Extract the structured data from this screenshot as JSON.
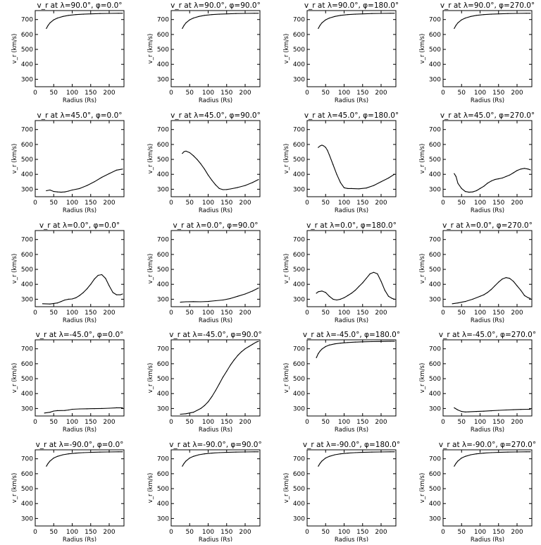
{
  "chart_data": [
    {
      "type": "line",
      "title": "v_r at λ=90.0°, φ=0.0°",
      "xlabel": "Radius (Rs)",
      "ylabel": "v_r (km/s)",
      "xlim": [
        0,
        240
      ],
      "ylim": [
        250,
        760
      ],
      "xticks": [
        0,
        50,
        100,
        150,
        200
      ],
      "yticks": [
        300,
        400,
        500,
        600,
        700
      ],
      "x": [
        30,
        35,
        40,
        50,
        60,
        75,
        90,
        110,
        130,
        150,
        175,
        200,
        225,
        236
      ],
      "values": [
        640,
        662,
        678,
        698,
        710,
        721,
        728,
        733,
        736,
        738,
        740,
        741,
        742,
        742
      ]
    },
    {
      "type": "line",
      "title": "v_r at λ=90.0°, φ=90.0°",
      "xlabel": "Radius (Rs)",
      "ylabel": "v_r (km/s)",
      "xlim": [
        0,
        240
      ],
      "ylim": [
        250,
        760
      ],
      "xticks": [
        0,
        50,
        100,
        150,
        200
      ],
      "yticks": [
        300,
        400,
        500,
        600,
        700
      ],
      "x": [
        30,
        35,
        40,
        50,
        60,
        75,
        90,
        110,
        130,
        150,
        175,
        200,
        225,
        236
      ],
      "values": [
        640,
        662,
        678,
        698,
        710,
        721,
        728,
        733,
        736,
        738,
        740,
        741,
        742,
        742
      ]
    },
    {
      "type": "line",
      "title": "v_r at λ=90.0°, φ=180.0°",
      "xlabel": "Radius (Rs)",
      "ylabel": "v_r (km/s)",
      "xlim": [
        0,
        240
      ],
      "ylim": [
        250,
        760
      ],
      "xticks": [
        0,
        50,
        100,
        150,
        200
      ],
      "yticks": [
        300,
        400,
        500,
        600,
        700
      ],
      "x": [
        30,
        35,
        40,
        50,
        60,
        75,
        90,
        110,
        130,
        150,
        175,
        200,
        225,
        236
      ],
      "values": [
        640,
        662,
        678,
        698,
        710,
        721,
        728,
        733,
        736,
        738,
        740,
        741,
        742,
        742
      ]
    },
    {
      "type": "line",
      "title": "v_r at λ=90.0°, φ=270.0°",
      "xlabel": "Radius (Rs)",
      "ylabel": "v_r (km/s)",
      "xlim": [
        0,
        240
      ],
      "ylim": [
        250,
        760
      ],
      "xticks": [
        0,
        50,
        100,
        150,
        200
      ],
      "yticks": [
        300,
        400,
        500,
        600,
        700
      ],
      "x": [
        30,
        35,
        40,
        50,
        60,
        75,
        90,
        110,
        130,
        150,
        175,
        200,
        225,
        236
      ],
      "values": [
        640,
        662,
        678,
        698,
        710,
        721,
        728,
        733,
        736,
        738,
        740,
        741,
        742,
        742
      ]
    },
    {
      "type": "line",
      "title": "v_r at λ=45.0°, φ=0.0°",
      "xlabel": "Radius (Rs)",
      "ylabel": "v_r (km/s)",
      "xlim": [
        0,
        240
      ],
      "ylim": [
        250,
        760
      ],
      "xticks": [
        0,
        50,
        100,
        150,
        200
      ],
      "yticks": [
        300,
        400,
        500,
        600,
        700
      ],
      "x": [
        30,
        40,
        50,
        60,
        70,
        80,
        90,
        100,
        120,
        140,
        160,
        180,
        200,
        220,
        236
      ],
      "values": [
        290,
        295,
        285,
        282,
        280,
        282,
        288,
        295,
        305,
        325,
        350,
        380,
        405,
        428,
        435
      ]
    },
    {
      "type": "line",
      "title": "v_r at λ=45.0°, φ=90.0°",
      "xlabel": "Radius (Rs)",
      "ylabel": "v_r (km/s)",
      "xlim": [
        0,
        240
      ],
      "ylim": [
        250,
        760
      ],
      "xticks": [
        0,
        50,
        100,
        150,
        200
      ],
      "yticks": [
        300,
        400,
        500,
        600,
        700
      ],
      "x": [
        30,
        35,
        40,
        50,
        60,
        70,
        80,
        90,
        100,
        110,
        120,
        130,
        140,
        150,
        160,
        180,
        200,
        220,
        236
      ],
      "values": [
        540,
        552,
        555,
        545,
        525,
        500,
        470,
        435,
        395,
        360,
        330,
        305,
        297,
        298,
        302,
        312,
        325,
        345,
        365
      ]
    },
    {
      "type": "line",
      "title": "v_r at λ=45.0°, φ=180.0°",
      "xlabel": "Radius (Rs)",
      "ylabel": "v_r (km/s)",
      "xlim": [
        0,
        240
      ],
      "ylim": [
        250,
        760
      ],
      "xticks": [
        0,
        50,
        100,
        150,
        200
      ],
      "yticks": [
        300,
        400,
        500,
        600,
        700
      ],
      "x": [
        30,
        35,
        40,
        45,
        50,
        55,
        60,
        70,
        80,
        90,
        100,
        110,
        120,
        140,
        160,
        180,
        200,
        220,
        236
      ],
      "values": [
        580,
        590,
        595,
        590,
        580,
        560,
        530,
        465,
        400,
        345,
        310,
        305,
        305,
        303,
        308,
        325,
        350,
        375,
        400
      ]
    },
    {
      "type": "line",
      "title": "v_r at λ=45.0°, φ=270.0°",
      "xlabel": "Radius (Rs)",
      "ylabel": "v_r (km/s)",
      "xlim": [
        0,
        240
      ],
      "ylim": [
        250,
        760
      ],
      "xticks": [
        0,
        50,
        100,
        150,
        200
      ],
      "yticks": [
        300,
        400,
        500,
        600,
        700
      ],
      "x": [
        30,
        35,
        40,
        50,
        60,
        70,
        80,
        90,
        100,
        110,
        120,
        130,
        140,
        150,
        160,
        170,
        180,
        190,
        200,
        210,
        220,
        230,
        236
      ],
      "values": [
        405,
        385,
        340,
        305,
        285,
        280,
        282,
        290,
        305,
        320,
        340,
        355,
        365,
        370,
        375,
        385,
        395,
        410,
        425,
        435,
        440,
        435,
        430
      ]
    },
    {
      "type": "line",
      "title": "v_r at λ=0.0°, φ=0.0°",
      "xlabel": "Radius (Rs)",
      "ylabel": "v_r (km/s)",
      "xlim": [
        0,
        240
      ],
      "ylim": [
        250,
        760
      ],
      "xticks": [
        0,
        50,
        100,
        150,
        200
      ],
      "yticks": [
        300,
        400,
        500,
        600,
        700
      ],
      "x": [
        20,
        40,
        60,
        70,
        80,
        90,
        100,
        110,
        120,
        130,
        140,
        150,
        160,
        170,
        180,
        190,
        200,
        210,
        220,
        230,
        236
      ],
      "values": [
        270,
        268,
        275,
        285,
        295,
        300,
        302,
        310,
        325,
        345,
        370,
        400,
        435,
        460,
        465,
        440,
        390,
        345,
        330,
        330,
        335
      ]
    },
    {
      "type": "line",
      "title": "v_r at λ=0.0°, φ=90.0°",
      "xlabel": "Radius (Rs)",
      "ylabel": "v_r (km/s)",
      "xlim": [
        0,
        240
      ],
      "ylim": [
        250,
        760
      ],
      "xticks": [
        0,
        50,
        100,
        150,
        200
      ],
      "yticks": [
        300,
        400,
        500,
        600,
        700
      ],
      "x": [
        25,
        40,
        60,
        80,
        100,
        120,
        140,
        160,
        180,
        200,
        220,
        236
      ],
      "values": [
        280,
        283,
        284,
        283,
        285,
        290,
        295,
        305,
        320,
        335,
        355,
        375
      ]
    },
    {
      "type": "line",
      "title": "v_r at λ=0.0°, φ=180.0°",
      "xlabel": "Radius (Rs)",
      "ylabel": "v_r (km/s)",
      "xlim": [
        0,
        240
      ],
      "ylim": [
        250,
        760
      ],
      "xticks": [
        0,
        50,
        100,
        150,
        200
      ],
      "yticks": [
        300,
        400,
        500,
        600,
        700
      ],
      "x": [
        25,
        30,
        40,
        50,
        60,
        70,
        80,
        90,
        100,
        110,
        120,
        130,
        140,
        150,
        160,
        170,
        180,
        190,
        200,
        210,
        220,
        230,
        236
      ],
      "values": [
        340,
        350,
        355,
        345,
        320,
        300,
        295,
        300,
        310,
        325,
        340,
        360,
        385,
        410,
        440,
        470,
        480,
        470,
        420,
        360,
        320,
        305,
        300
      ]
    },
    {
      "type": "line",
      "title": "v_r at λ=0.0°, φ=270.0°",
      "xlabel": "Radius (Rs)",
      "ylabel": "v_r (km/s)",
      "xlim": [
        0,
        240
      ],
      "ylim": [
        250,
        760
      ],
      "xticks": [
        0,
        50,
        100,
        150,
        200
      ],
      "yticks": [
        300,
        400,
        500,
        600,
        700
      ],
      "x": [
        25,
        40,
        60,
        80,
        100,
        110,
        120,
        130,
        140,
        150,
        160,
        170,
        180,
        190,
        200,
        210,
        220,
        230,
        236
      ],
      "values": [
        270,
        275,
        285,
        300,
        320,
        330,
        345,
        365,
        390,
        415,
        435,
        445,
        440,
        420,
        390,
        360,
        325,
        310,
        305
      ]
    },
    {
      "type": "line",
      "title": "v_r at λ=-45.0°, φ=0.0°",
      "xlabel": "Radius (Rs)",
      "ylabel": "v_r (km/s)",
      "xlim": [
        0,
        240
      ],
      "ylim": [
        250,
        760
      ],
      "xticks": [
        0,
        50,
        100,
        150,
        200
      ],
      "yticks": [
        300,
        400,
        500,
        600,
        700
      ],
      "x": [
        25,
        40,
        50,
        60,
        80,
        90,
        100,
        120,
        140,
        160,
        180,
        200,
        220,
        236
      ],
      "values": [
        270,
        275,
        283,
        286,
        287,
        290,
        295,
        297,
        298,
        299,
        300,
        302,
        305,
        305
      ]
    },
    {
      "type": "line",
      "title": "v_r at λ=-45.0°, φ=90.0°",
      "xlabel": "Radius (Rs)",
      "ylabel": "v_r (km/s)",
      "xlim": [
        0,
        240
      ],
      "ylim": [
        250,
        760
      ],
      "xticks": [
        0,
        50,
        100,
        150,
        200
      ],
      "yticks": [
        300,
        400,
        500,
        600,
        700
      ],
      "x": [
        25,
        40,
        60,
        80,
        90,
        100,
        110,
        120,
        130,
        140,
        150,
        160,
        170,
        180,
        190,
        200,
        210,
        220,
        230,
        236
      ],
      "values": [
        262,
        265,
        275,
        300,
        320,
        345,
        380,
        420,
        465,
        510,
        550,
        590,
        625,
        655,
        680,
        700,
        715,
        730,
        745,
        750
      ]
    },
    {
      "type": "line",
      "title": "v_r at λ=-45.0°, φ=180.0°",
      "xlabel": "Radius (Rs)",
      "ylabel": "v_r (km/s)",
      "xlim": [
        0,
        240
      ],
      "ylim": [
        250,
        760
      ],
      "xticks": [
        0,
        50,
        100,
        150,
        200
      ],
      "yticks": [
        300,
        400,
        500,
        600,
        700
      ],
      "x": [
        25,
        30,
        35,
        40,
        50,
        60,
        75,
        90,
        110,
        130,
        150,
        175,
        200,
        225,
        236
      ],
      "values": [
        640,
        668,
        685,
        698,
        715,
        725,
        733,
        738,
        742,
        745,
        747,
        748,
        749,
        750,
        750
      ]
    },
    {
      "type": "line",
      "title": "v_r at λ=-45.0°, φ=270.0°",
      "xlabel": "Radius (Rs)",
      "ylabel": "v_r (km/s)",
      "xlim": [
        0,
        240
      ],
      "ylim": [
        250,
        760
      ],
      "xticks": [
        0,
        50,
        100,
        150,
        200
      ],
      "yticks": [
        300,
        400,
        500,
        600,
        700
      ],
      "x": [
        30,
        40,
        50,
        60,
        70,
        90,
        110,
        130,
        150,
        170,
        190,
        210,
        230,
        236
      ],
      "values": [
        305,
        290,
        280,
        277,
        278,
        280,
        282,
        285,
        288,
        290,
        292,
        294,
        295,
        295
      ]
    },
    {
      "type": "line",
      "title": "v_r at λ=-90.0°, φ=0.0°",
      "xlabel": "Radius (Rs)",
      "ylabel": "v_r (km/s)",
      "xlim": [
        0,
        240
      ],
      "ylim": [
        250,
        760
      ],
      "xticks": [
        0,
        50,
        100,
        150,
        200
      ],
      "yticks": [
        300,
        400,
        500,
        600,
        700
      ],
      "x": [
        30,
        35,
        40,
        50,
        60,
        75,
        90,
        110,
        130,
        150,
        175,
        200,
        225,
        236
      ],
      "values": [
        650,
        670,
        685,
        705,
        716,
        727,
        733,
        738,
        741,
        743,
        745,
        746,
        747,
        747
      ]
    },
    {
      "type": "line",
      "title": "v_r at λ=-90.0°, φ=90.0°",
      "xlabel": "Radius (Rs)",
      "ylabel": "v_r (km/s)",
      "xlim": [
        0,
        240
      ],
      "ylim": [
        250,
        760
      ],
      "xticks": [
        0,
        50,
        100,
        150,
        200
      ],
      "yticks": [
        300,
        400,
        500,
        600,
        700
      ],
      "x": [
        30,
        35,
        40,
        50,
        60,
        75,
        90,
        110,
        130,
        150,
        175,
        200,
        225,
        236
      ],
      "values": [
        650,
        670,
        685,
        705,
        716,
        727,
        733,
        738,
        741,
        743,
        745,
        746,
        747,
        747
      ]
    },
    {
      "type": "line",
      "title": "v_r at λ=-90.0°, φ=180.0°",
      "xlabel": "Radius (Rs)",
      "ylabel": "v_r (km/s)",
      "xlim": [
        0,
        240
      ],
      "ylim": [
        250,
        760
      ],
      "xticks": [
        0,
        50,
        100,
        150,
        200
      ],
      "yticks": [
        300,
        400,
        500,
        600,
        700
      ],
      "x": [
        30,
        35,
        40,
        50,
        60,
        75,
        90,
        110,
        130,
        150,
        175,
        200,
        225,
        236
      ],
      "values": [
        650,
        670,
        685,
        705,
        716,
        727,
        733,
        738,
        741,
        743,
        745,
        746,
        747,
        747
      ]
    },
    {
      "type": "line",
      "title": "v_r at λ=-90.0°, φ=270.0°",
      "xlabel": "Radius (Rs)",
      "ylabel": "v_r (km/s)",
      "xlim": [
        0,
        240
      ],
      "ylim": [
        250,
        760
      ],
      "xticks": [
        0,
        50,
        100,
        150,
        200
      ],
      "yticks": [
        300,
        400,
        500,
        600,
        700
      ],
      "x": [
        30,
        35,
        40,
        50,
        60,
        75,
        90,
        110,
        130,
        150,
        175,
        200,
        225,
        236
      ],
      "values": [
        650,
        670,
        685,
        705,
        716,
        727,
        733,
        738,
        741,
        743,
        745,
        746,
        747,
        747
      ]
    }
  ]
}
